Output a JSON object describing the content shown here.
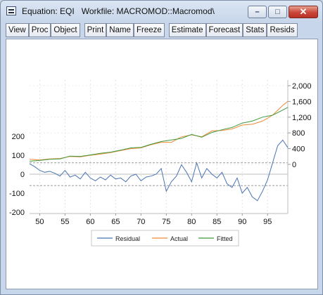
{
  "window": {
    "title": "Equation: EQI   Workfile: MACROMOD::Macromod\\",
    "controls": {
      "minimize": "–",
      "maximize": "□",
      "close": "✕"
    }
  },
  "toolbar": {
    "group1": [
      "View",
      "Proc",
      "Object"
    ],
    "group2": [
      "Print",
      "Name",
      "Freeze"
    ],
    "group3": [
      "Estimate",
      "Forecast",
      "Stats",
      "Resids"
    ]
  },
  "chart_data": {
    "type": "line",
    "x_ticks": [
      "50",
      "55",
      "60",
      "65",
      "70",
      "75",
      "80",
      "85",
      "90",
      "95"
    ],
    "x_range": [
      1948,
      1999
    ],
    "left_axis": {
      "ticks": [
        "200",
        "100",
        "0",
        "-100",
        "-200"
      ],
      "range": [
        -200,
        200
      ]
    },
    "right_axis": {
      "ticks": [
        "2,000",
        "1,600",
        "1,200",
        "800",
        "400",
        "0"
      ],
      "range": [
        0,
        2000
      ]
    },
    "residual_bands": [
      60,
      -60
    ],
    "legend": [
      "Residual",
      "Actual",
      "Fitted"
    ],
    "colors": {
      "Residual": "#4a74b4",
      "Actual": "#f08a38",
      "Fitted": "#3f9a3f"
    },
    "series": [
      {
        "name": "Residual",
        "axis": "left",
        "x": [
          1948,
          1949,
          1950,
          1951,
          1952,
          1953,
          1954,
          1955,
          1956,
          1957,
          1958,
          1959,
          1960,
          1961,
          1962,
          1963,
          1964,
          1965,
          1966,
          1967,
          1968,
          1969,
          1970,
          1971,
          1972,
          1973,
          1974,
          1975,
          1976,
          1977,
          1978,
          1979,
          1980,
          1981,
          1982,
          1983,
          1984,
          1985,
          1986,
          1987,
          1988,
          1989,
          1990,
          1991,
          1992,
          1993,
          1994,
          1995,
          1996,
          1997,
          1998,
          1999
        ],
        "y": [
          55,
          40,
          20,
          10,
          15,
          5,
          -10,
          20,
          -15,
          -5,
          -25,
          10,
          -20,
          -35,
          -15,
          -30,
          -5,
          -25,
          -20,
          -40,
          -10,
          0,
          -35,
          -15,
          -10,
          0,
          30,
          -90,
          -40,
          -10,
          50,
          10,
          -40,
          60,
          -20,
          30,
          0,
          -20,
          10,
          -50,
          -70,
          -20,
          -100,
          -70,
          -120,
          -140,
          -90,
          -30,
          60,
          150,
          180,
          140
        ]
      },
      {
        "name": "Actual",
        "axis": "right",
        "x": [
          1948,
          1950,
          1952,
          1954,
          1956,
          1958,
          1960,
          1962,
          1964,
          1966,
          1968,
          1970,
          1972,
          1974,
          1976,
          1978,
          1980,
          1982,
          1984,
          1986,
          1988,
          1990,
          1992,
          1994,
          1996,
          1998,
          1999
        ],
        "y": [
          130,
          110,
          140,
          150,
          200,
          190,
          230,
          260,
          300,
          350,
          400,
          420,
          500,
          560,
          560,
          700,
          750,
          700,
          850,
          860,
          900,
          1000,
          1020,
          1100,
          1250,
          1500,
          1600
        ]
      },
      {
        "name": "Fitted",
        "axis": "right",
        "x": [
          1948,
          1950,
          1952,
          1954,
          1956,
          1958,
          1960,
          1962,
          1964,
          1966,
          1968,
          1970,
          1972,
          1974,
          1976,
          1978,
          1980,
          1982,
          1984,
          1986,
          1988,
          1990,
          1992,
          1994,
          1996,
          1998,
          1999
        ],
        "y": [
          80,
          100,
          130,
          140,
          210,
          200,
          240,
          280,
          310,
          360,
          420,
          430,
          510,
          580,
          620,
          660,
          760,
          690,
          810,
          880,
          940,
          1050,
          1100,
          1200,
          1250,
          1380,
          1450
        ]
      }
    ]
  }
}
